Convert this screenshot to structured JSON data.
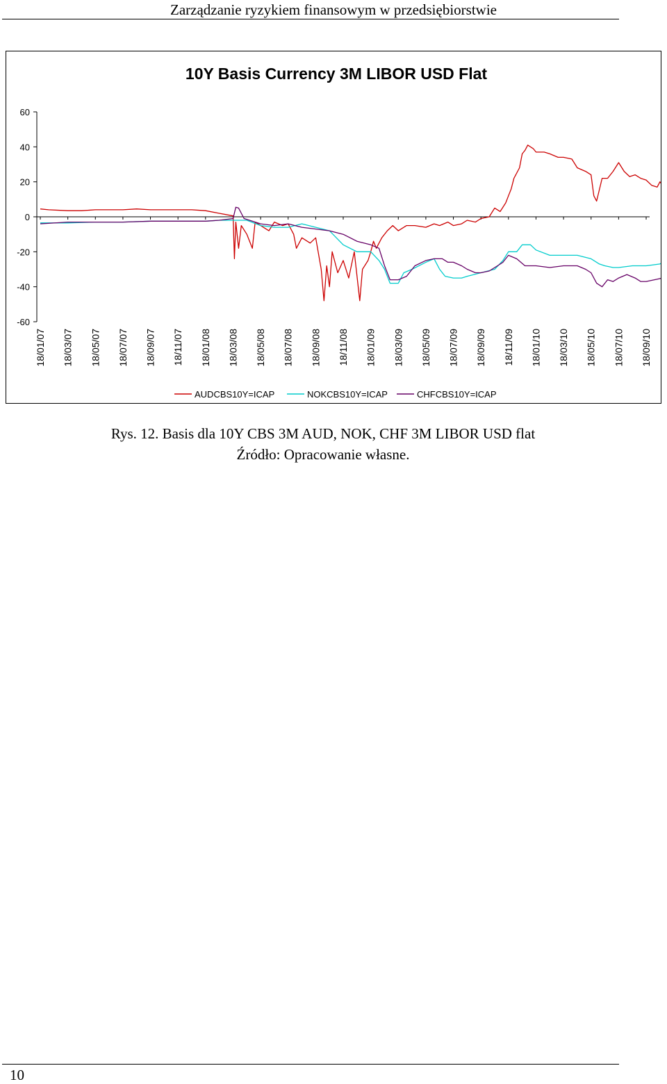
{
  "header": {
    "title": "Zarządzanie ryzykiem finansowym w przedsiębiorstwie"
  },
  "caption": {
    "figure": "Rys. 12. Basis dla 10Y CBS 3M AUD, NOK, CHF 3M LIBOR USD flat",
    "source": "Źródło: Opracowanie własne."
  },
  "footer": {
    "page_number": "10"
  },
  "chart_data": {
    "type": "line",
    "title": "10Y Basis Currency 3M LIBOR USD Flat",
    "xlabel": "",
    "ylabel": "",
    "ylim": [
      -60,
      60
    ],
    "yticks": [
      "60",
      "40",
      "20",
      "0",
      "-20",
      "-40",
      "-60"
    ],
    "xticks": [
      "18/01/07",
      "18/03/07",
      "18/05/07",
      "18/07/07",
      "18/09/07",
      "18/11/07",
      "18/01/08",
      "18/03/08",
      "18/05/08",
      "18/07/08",
      "18/09/08",
      "18/11/08",
      "18/01/09",
      "18/03/09",
      "18/05/09",
      "18/07/09",
      "18/09/09",
      "18/11/09",
      "18/01/10",
      "18/03/10",
      "18/05/10",
      "18/07/10",
      "18/09/10"
    ],
    "grid": false,
    "legend_position": "bottom",
    "series": [
      {
        "name": "AUDCBS10Y=ICAP",
        "color": "#cc0000",
        "points": [
          [
            0,
            4.5
          ],
          [
            0.3,
            4
          ],
          [
            1,
            3.5
          ],
          [
            1.5,
            3.5
          ],
          [
            2,
            4
          ],
          [
            2.5,
            4
          ],
          [
            3,
            4
          ],
          [
            3.5,
            4.5
          ],
          [
            4,
            4
          ],
          [
            4.5,
            4
          ],
          [
            5,
            4
          ],
          [
            5.5,
            4
          ],
          [
            6,
            3.5
          ],
          [
            6.5,
            2
          ],
          [
            7,
            0.5
          ],
          [
            7.05,
            -24
          ],
          [
            7.1,
            -3
          ],
          [
            7.2,
            -18
          ],
          [
            7.3,
            -5
          ],
          [
            7.5,
            -10
          ],
          [
            7.7,
            -18
          ],
          [
            7.8,
            -3
          ],
          [
            8,
            -5
          ],
          [
            8.3,
            -8
          ],
          [
            8.5,
            -3
          ],
          [
            8.8,
            -5
          ],
          [
            9,
            -4
          ],
          [
            9.2,
            -10
          ],
          [
            9.3,
            -18
          ],
          [
            9.5,
            -12
          ],
          [
            9.8,
            -15
          ],
          [
            10,
            -12
          ],
          [
            10.2,
            -30
          ],
          [
            10.3,
            -48
          ],
          [
            10.4,
            -28
          ],
          [
            10.5,
            -40
          ],
          [
            10.6,
            -20
          ],
          [
            10.8,
            -32
          ],
          [
            11,
            -25
          ],
          [
            11.2,
            -35
          ],
          [
            11.4,
            -20
          ],
          [
            11.6,
            -48
          ],
          [
            11.7,
            -30
          ],
          [
            11.9,
            -25
          ],
          [
            12,
            -20
          ],
          [
            12.1,
            -14
          ],
          [
            12.2,
            -18
          ],
          [
            12.4,
            -12
          ],
          [
            12.6,
            -8
          ],
          [
            12.8,
            -5
          ],
          [
            13,
            -8
          ],
          [
            13.3,
            -5
          ],
          [
            13.6,
            -5
          ],
          [
            14,
            -6
          ],
          [
            14.3,
            -4
          ],
          [
            14.5,
            -5
          ],
          [
            14.8,
            -3
          ],
          [
            15,
            -5
          ],
          [
            15.3,
            -4
          ],
          [
            15.5,
            -2
          ],
          [
            15.8,
            -3
          ],
          [
            16,
            -1
          ],
          [
            16.3,
            0
          ],
          [
            16.5,
            5
          ],
          [
            16.7,
            3
          ],
          [
            16.9,
            8
          ],
          [
            17,
            12
          ],
          [
            17.1,
            16
          ],
          [
            17.2,
            22
          ],
          [
            17.4,
            28
          ],
          [
            17.5,
            36
          ],
          [
            17.6,
            38
          ],
          [
            17.7,
            41
          ],
          [
            17.9,
            39
          ],
          [
            18,
            37
          ],
          [
            18.3,
            37
          ],
          [
            18.5,
            36
          ],
          [
            18.8,
            34
          ],
          [
            19,
            34
          ],
          [
            19.3,
            33
          ],
          [
            19.5,
            28
          ],
          [
            19.8,
            26
          ],
          [
            20,
            24
          ],
          [
            20.1,
            12
          ],
          [
            20.2,
            9
          ],
          [
            20.4,
            22
          ],
          [
            20.6,
            22
          ],
          [
            20.8,
            26
          ],
          [
            21,
            31
          ],
          [
            21.2,
            26
          ],
          [
            21.4,
            23
          ],
          [
            21.6,
            24
          ],
          [
            21.8,
            22
          ],
          [
            22,
            21
          ],
          [
            22.2,
            18
          ],
          [
            22.4,
            17
          ],
          [
            22.5,
            20
          ],
          [
            22.6,
            18
          ],
          [
            22.8,
            16
          ],
          [
            23,
            18
          ]
        ]
      },
      {
        "name": "NOKCBS10Y=ICAP",
        "color": "#00cccc",
        "points": [
          [
            0,
            -3.5
          ],
          [
            1,
            -3.5
          ],
          [
            2,
            -3
          ],
          [
            3,
            -3
          ],
          [
            4,
            -2.5
          ],
          [
            5,
            -2.5
          ],
          [
            6,
            -2.5
          ],
          [
            6.5,
            -2
          ],
          [
            7,
            -2
          ],
          [
            7.5,
            -2
          ],
          [
            8,
            -5
          ],
          [
            8.5,
            -6
          ],
          [
            9,
            -6
          ],
          [
            9.5,
            -4
          ],
          [
            10,
            -6
          ],
          [
            10.5,
            -8
          ],
          [
            11,
            -16
          ],
          [
            11.5,
            -20
          ],
          [
            12,
            -20
          ],
          [
            12.3,
            -25
          ],
          [
            12.5,
            -30
          ],
          [
            12.7,
            -38
          ],
          [
            13,
            -38
          ],
          [
            13.2,
            -32
          ],
          [
            13.5,
            -30
          ],
          [
            14,
            -26
          ],
          [
            14.3,
            -24
          ],
          [
            14.5,
            -30
          ],
          [
            14.7,
            -34
          ],
          [
            15,
            -35
          ],
          [
            15.3,
            -35
          ],
          [
            15.5,
            -34
          ],
          [
            16,
            -32
          ],
          [
            16.5,
            -30
          ],
          [
            16.8,
            -25
          ],
          [
            17,
            -20
          ],
          [
            17.3,
            -20
          ],
          [
            17.5,
            -16
          ],
          [
            17.8,
            -16
          ],
          [
            18,
            -19
          ],
          [
            18.5,
            -22
          ],
          [
            19,
            -22
          ],
          [
            19.5,
            -22
          ],
          [
            20,
            -24
          ],
          [
            20.3,
            -27
          ],
          [
            20.5,
            -28
          ],
          [
            20.8,
            -29
          ],
          [
            21,
            -29
          ],
          [
            21.5,
            -28
          ],
          [
            22,
            -28
          ],
          [
            22.5,
            -27
          ],
          [
            22.8,
            -24
          ],
          [
            23,
            -17
          ]
        ]
      },
      {
        "name": "CHFCBS10Y=ICAP",
        "color": "#660066",
        "points": [
          [
            0,
            -4
          ],
          [
            1,
            -3
          ],
          [
            2,
            -3
          ],
          [
            3,
            -3
          ],
          [
            4,
            -2.5
          ],
          [
            5,
            -2.5
          ],
          [
            6,
            -2.5
          ],
          [
            6.5,
            -2
          ],
          [
            7,
            -1
          ],
          [
            7.1,
            5.5
          ],
          [
            7.2,
            5
          ],
          [
            7.4,
            -1
          ],
          [
            7.6,
            -2
          ],
          [
            8,
            -4
          ],
          [
            8.5,
            -5
          ],
          [
            9,
            -4
          ],
          [
            9.5,
            -6
          ],
          [
            10,
            -7
          ],
          [
            10.5,
            -8
          ],
          [
            11,
            -10
          ],
          [
            11.5,
            -14
          ],
          [
            12,
            -16
          ],
          [
            12.3,
            -18
          ],
          [
            12.5,
            -28
          ],
          [
            12.7,
            -36
          ],
          [
            13,
            -36
          ],
          [
            13.3,
            -34
          ],
          [
            13.6,
            -28
          ],
          [
            14,
            -25
          ],
          [
            14.3,
            -24
          ],
          [
            14.6,
            -24
          ],
          [
            14.8,
            -26
          ],
          [
            15,
            -26
          ],
          [
            15.3,
            -28
          ],
          [
            15.5,
            -30
          ],
          [
            15.8,
            -32
          ],
          [
            16,
            -32
          ],
          [
            16.3,
            -31
          ],
          [
            16.6,
            -28
          ],
          [
            16.8,
            -26
          ],
          [
            17,
            -22
          ],
          [
            17.3,
            -24
          ],
          [
            17.6,
            -28
          ],
          [
            18,
            -28
          ],
          [
            18.5,
            -29
          ],
          [
            19,
            -28
          ],
          [
            19.5,
            -28
          ],
          [
            19.8,
            -30
          ],
          [
            20,
            -32
          ],
          [
            20.2,
            -38
          ],
          [
            20.4,
            -40
          ],
          [
            20.6,
            -36
          ],
          [
            20.8,
            -37
          ],
          [
            21,
            -35
          ],
          [
            21.3,
            -33
          ],
          [
            21.6,
            -35
          ],
          [
            21.8,
            -37
          ],
          [
            22,
            -37
          ],
          [
            22.3,
            -36
          ],
          [
            22.6,
            -35
          ],
          [
            22.8,
            -33
          ],
          [
            23,
            -30
          ]
        ]
      }
    ]
  }
}
